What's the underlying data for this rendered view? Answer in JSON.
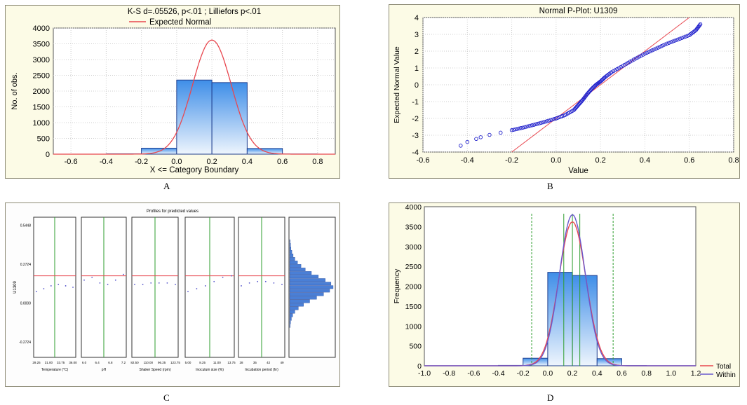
{
  "panel_labels": [
    "A",
    "B",
    "C",
    "D"
  ],
  "chart_data": [
    {
      "panel": "A",
      "type": "bar",
      "title": "K-S d=.05526, p<.01 ; Lilliefors p<.01",
      "legend": [
        {
          "name": "Expected Normal",
          "color": "#e8474f"
        }
      ],
      "legend_placement": "top-center",
      "xlabel": "X <= Category Boundary",
      "ylabel": "No. of obs.",
      "xlim": [
        -0.7,
        0.9
      ],
      "ylim": [
        0,
        4000
      ],
      "xticks": [
        -0.6,
        -0.4,
        -0.2,
        0.0,
        0.2,
        0.4,
        0.6,
        0.8
      ],
      "xtick_labels": [
        "-0.6",
        "-0.4",
        "-0.2",
        "0.0",
        "0.2",
        "0.4",
        "0.6",
        "0.8"
      ],
      "yticks": [
        0,
        500,
        1000,
        1500,
        2000,
        2500,
        3000,
        3500,
        4000
      ],
      "ytick_labels": [
        "0",
        "500",
        "1000",
        "1500",
        "2000",
        "2500",
        "3000",
        "3500",
        "4000"
      ],
      "bins": [
        {
          "from": -0.4,
          "to": -0.2,
          "value": 10
        },
        {
          "from": -0.2,
          "to": 0.0,
          "value": 190
        },
        {
          "from": 0.0,
          "to": 0.2,
          "value": 2350
        },
        {
          "from": 0.2,
          "to": 0.4,
          "value": 2270
        },
        {
          "from": 0.4,
          "to": 0.6,
          "value": 180
        },
        {
          "from": 0.6,
          "to": 0.8,
          "value": 5
        }
      ],
      "normal_curve": {
        "mean": 0.2,
        "sd": 0.11,
        "peak": 3620
      },
      "grid": true
    },
    {
      "panel": "B",
      "type": "scatter",
      "title": "Normal P-Plot: U1309",
      "xlabel": "Value",
      "ylabel": "Expected Normal Value",
      "xlim": [
        -0.6,
        0.8
      ],
      "ylim": [
        -4,
        4
      ],
      "xticks": [
        -0.6,
        -0.4,
        -0.2,
        0.0,
        0.2,
        0.4,
        0.6,
        0.8
      ],
      "xtick_labels": [
        "-0.6",
        "-0.4",
        "-0.2",
        "0.0",
        "0.2",
        "0.4",
        "0.6",
        "0.8"
      ],
      "yticks": [
        -4,
        -3,
        -2,
        -1,
        0,
        1,
        2,
        3,
        4
      ],
      "ytick_labels": [
        "-4",
        "-3",
        "-2",
        "-1",
        "0",
        "1",
        "2",
        "3",
        "4"
      ],
      "reference_line": {
        "slope": 10.0,
        "intercept": -2.0
      },
      "points": [
        [
          -0.43,
          -3.62
        ],
        [
          -0.4,
          -3.4
        ],
        [
          -0.36,
          -3.22
        ],
        [
          -0.34,
          -3.12
        ],
        [
          -0.3,
          -2.98
        ],
        [
          -0.25,
          -2.85
        ],
        [
          -0.2,
          -2.7
        ],
        [
          -0.15,
          -2.55
        ],
        [
          -0.1,
          -2.38
        ],
        [
          -0.05,
          -2.2
        ],
        [
          0.0,
          -2.0
        ],
        [
          0.04,
          -1.8
        ],
        [
          0.08,
          -1.5
        ],
        [
          0.1,
          -1.2
        ],
        [
          0.12,
          -0.9
        ],
        [
          0.14,
          -0.55
        ],
        [
          0.16,
          -0.25
        ],
        [
          0.18,
          0.0
        ],
        [
          0.2,
          0.2
        ],
        [
          0.22,
          0.45
        ],
        [
          0.25,
          0.75
        ],
        [
          0.3,
          1.12
        ],
        [
          0.35,
          1.5
        ],
        [
          0.4,
          1.85
        ],
        [
          0.45,
          2.15
        ],
        [
          0.5,
          2.45
        ],
        [
          0.55,
          2.7
        ],
        [
          0.6,
          2.95
        ],
        [
          0.63,
          3.25
        ],
        [
          0.65,
          3.6
        ]
      ],
      "grid": true
    },
    {
      "panel": "C",
      "type": "line",
      "title": "Profiles for predicted values",
      "ylabel": "U1309",
      "yticks": [
        -0.2724,
        0.0,
        0.2724,
        0.5448
      ],
      "ytick_labels": [
        "-0.2724",
        "0.0000",
        "0.2724",
        "0.5448"
      ],
      "ylim": [
        -0.38,
        0.6
      ],
      "predicted_level": 0.19,
      "factors": [
        {
          "xlabel": "Temperature (°C)",
          "tick_labels": [
            "29.25",
            "31.00",
            "33.75",
            "36.00"
          ],
          "profile": [
            0.08,
            0.1,
            0.12,
            0.13,
            0.12,
            0.11
          ]
        },
        {
          "xlabel": "pH",
          "tick_labels": [
            "6.0",
            "6.4",
            "6.8",
            "7.2"
          ],
          "profile": [
            0.16,
            0.18,
            0.14,
            0.13,
            0.16,
            0.2
          ]
        },
        {
          "xlabel": "Shaker Speed (rpm)",
          "tick_labels": [
            "82.50",
            "110.00",
            "96.25",
            "123.75"
          ],
          "profile": [
            0.13,
            0.13,
            0.14,
            0.14,
            0.14,
            0.13
          ]
        },
        {
          "xlabel": "Inoculum size (%)",
          "tick_labels": [
            "5.00",
            "8.25",
            "11.00",
            "13.75"
          ],
          "profile": [
            0.08,
            0.1,
            0.12,
            0.15,
            0.18,
            0.19
          ]
        },
        {
          "xlabel": "Incubation period (hr)",
          "tick_labels": [
            "28",
            "35",
            "42",
            "49"
          ],
          "profile": [
            0.12,
            0.14,
            0.15,
            0.15,
            0.14,
            0.13
          ]
        }
      ],
      "histogram": [
        0.01,
        0.02,
        0.03,
        0.05,
        0.08,
        0.12,
        0.18,
        0.26,
        0.36,
        0.5,
        0.66,
        0.82,
        0.95,
        1.0,
        0.92,
        0.78,
        0.62,
        0.46,
        0.32,
        0.2,
        0.12,
        0.07,
        0.04,
        0.02,
        0.01
      ]
    },
    {
      "panel": "D",
      "type": "bar",
      "xlabel": "",
      "ylabel": "Frequency",
      "xlim": [
        -1.0,
        1.2
      ],
      "ylim": [
        0,
        4000
      ],
      "xticks": [
        -1.0,
        -0.8,
        -0.6,
        -0.4,
        -0.2,
        0.0,
        0.2,
        0.4,
        0.6,
        0.8,
        1.0,
        1.2
      ],
      "xtick_labels": [
        "-1.0",
        "-0.8",
        "-0.6",
        "-0.4",
        "-0.2",
        "0.0",
        "0.2",
        "0.4",
        "0.6",
        "0.8",
        "1.0",
        "1.2"
      ],
      "yticks": [
        0,
        500,
        1000,
        1500,
        2000,
        2500,
        3000,
        3500,
        4000
      ],
      "ytick_labels": [
        "0",
        "500",
        "1000",
        "1500",
        "2000",
        "2500",
        "3000",
        "3500",
        "4000"
      ],
      "bins": [
        {
          "from": -0.4,
          "to": -0.2,
          "value": 10
        },
        {
          "from": -0.2,
          "to": 0.0,
          "value": 190
        },
        {
          "from": 0.0,
          "to": 0.2,
          "value": 2350
        },
        {
          "from": 0.2,
          "to": 0.4,
          "value": 2270
        },
        {
          "from": 0.4,
          "to": 0.6,
          "value": 180
        },
        {
          "from": 0.6,
          "to": 0.8,
          "value": 5
        }
      ],
      "curves": [
        {
          "name": "Total",
          "color": "#e8474f",
          "mean": 0.2,
          "sd": 0.11,
          "peak": 3620
        },
        {
          "name": "Within",
          "color": "#6a5acd",
          "mean": 0.2,
          "sd": 0.105,
          "peak": 3800
        }
      ],
      "limit_lines": [
        -0.13,
        0.13,
        0.2,
        0.26,
        0.53
      ],
      "legend_placement": "bottom-right",
      "grid": false
    }
  ]
}
